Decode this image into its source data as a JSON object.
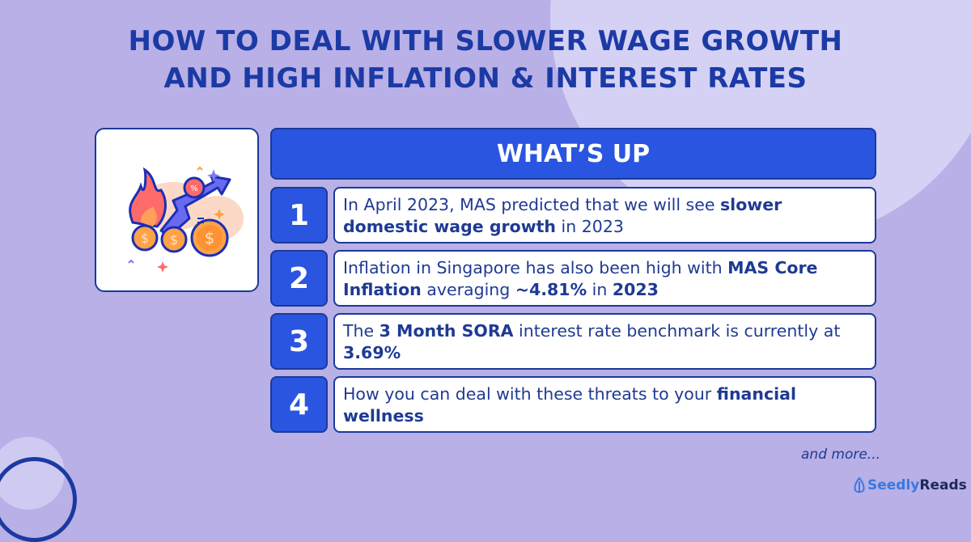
{
  "title": {
    "line1": "HOW TO DEAL WITH SLOWER WAGE GROWTH",
    "line2": "AND HIGH INFLATION & INTEREST RATES"
  },
  "header": "WHAT’S UP",
  "items": [
    {
      "number": "1",
      "segments": [
        {
          "text": "In April 2023, MAS predicted that we will see ",
          "bold": false
        },
        {
          "text": "slower domestic wage growth",
          "bold": true
        },
        {
          "text": " in 2023",
          "bold": false
        }
      ]
    },
    {
      "number": "2",
      "segments": [
        {
          "text": "Inflation in Singapore has also been high with ",
          "bold": false
        },
        {
          "text": "MAS Core Inflation",
          "bold": true
        },
        {
          "text": " averaging ",
          "bold": false
        },
        {
          "text": "~4.81%",
          "bold": true
        },
        {
          "text": " in ",
          "bold": false
        },
        {
          "text": "2023",
          "bold": true
        }
      ]
    },
    {
      "number": "3",
      "segments": [
        {
          "text": "The ",
          "bold": false
        },
        {
          "text": "3 Month SORA",
          "bold": true
        },
        {
          "text": " interest rate benchmark is currently at ",
          "bold": false
        },
        {
          "text": "3.69%",
          "bold": true
        }
      ]
    },
    {
      "number": "4",
      "segments": [
        {
          "text": "How you can deal with these threats to your ",
          "bold": false
        },
        {
          "text": "financial wellness",
          "bold": true
        }
      ]
    }
  ],
  "footer": {
    "more": "and more...",
    "logo_part1": "Seedly",
    "logo_part2": "Reads"
  },
  "icon": "burning-money-inflation-arrow-icon",
  "colors": {
    "background": "#b8b0e6",
    "accent": "#2a55e0",
    "text": "#1f3a93",
    "title": "#1c3aa5"
  }
}
